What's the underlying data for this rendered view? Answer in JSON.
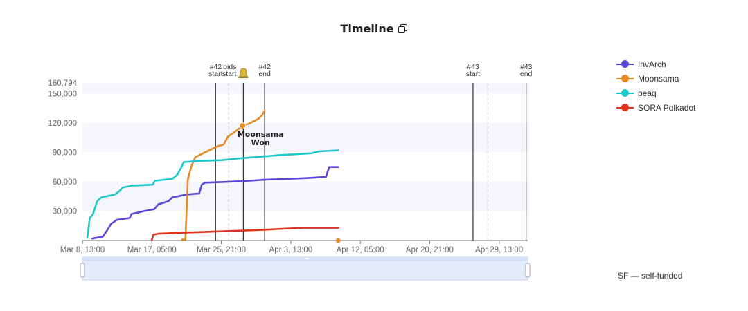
{
  "title": "Timeline",
  "footnote": "SF — self-funded",
  "colors": {
    "InvArch": "#5a47d8",
    "Moonsama": "#e88a22",
    "peaq": "#1ec8c8",
    "SORA Polkadot": "#e2321b"
  },
  "chart_data": {
    "type": "line",
    "y_ticks": [
      "160,794",
      "150,000",
      "120,000",
      "90,000",
      "60,000",
      "30,000"
    ],
    "x_ticks": [
      "Mar 8, 13:00",
      "Mar 17, 05:00",
      "Mar 25, 21:00",
      "Apr 3, 13:00",
      "Apr 12, 05:00",
      "Apr 20, 21:00",
      "Apr 29, 13:00"
    ],
    "ylim": [
      0,
      160794
    ],
    "xlim_days": [
      0,
      54.5
    ],
    "grid": "horizontal bands",
    "legend_position": "top-right",
    "markers": [
      {
        "line1": "#42",
        "line2": "start",
        "day": 16.3
      },
      {
        "line1": "bids",
        "line2": "start",
        "day": 19.7,
        "icon": "bell-icon"
      },
      {
        "line1": "#42",
        "line2": "end",
        "day": 22.3
      },
      {
        "line1": "#43",
        "line2": "start",
        "day": 47.8
      },
      {
        "line1": "#43",
        "line2": "end",
        "day": 54.3
      }
    ],
    "dashed_lines_days": [
      17.9,
      49.6
    ],
    "annotation": {
      "line1": "Moonsama",
      "line2": "Won",
      "day": 19.6,
      "value": 117000
    },
    "series": [
      {
        "name": "InvArch",
        "points": [
          [
            1.2,
            2000
          ],
          [
            2.5,
            4000
          ],
          [
            3,
            10000
          ],
          [
            3.5,
            17000
          ],
          [
            4.2,
            21000
          ],
          [
            5.8,
            23000
          ],
          [
            6,
            27000
          ],
          [
            7.5,
            30000
          ],
          [
            8.8,
            32000
          ],
          [
            9.3,
            37000
          ],
          [
            10.5,
            40000
          ],
          [
            11,
            44000
          ],
          [
            12.8,
            47000
          ],
          [
            14.3,
            48000
          ],
          [
            14.6,
            57000
          ],
          [
            15,
            59000
          ],
          [
            18,
            60000
          ],
          [
            20.5,
            61000
          ],
          [
            22.3,
            62000
          ],
          [
            25.5,
            63000
          ],
          [
            28,
            64000
          ],
          [
            29.8,
            65000
          ],
          [
            30.2,
            75000
          ],
          [
            31.3,
            75000
          ]
        ]
      },
      {
        "name": "Moonsama",
        "points": [
          [
            12.2,
            1000
          ],
          [
            12.6,
            1000
          ],
          [
            12.9,
            62000
          ],
          [
            13.3,
            75000
          ],
          [
            13.8,
            85000
          ],
          [
            15,
            90000
          ],
          [
            16.5,
            96000
          ],
          [
            17.3,
            98000
          ],
          [
            17.8,
            106000
          ],
          [
            18.5,
            110000
          ],
          [
            19.6,
            117000
          ],
          [
            20.3,
            119000
          ],
          [
            21.5,
            124000
          ],
          [
            22,
            128000
          ],
          [
            22.3,
            133000
          ]
        ]
      },
      {
        "name": "peaq",
        "points": [
          [
            0.6,
            3000
          ],
          [
            0.9,
            23000
          ],
          [
            1.3,
            27000
          ],
          [
            1.8,
            40000
          ],
          [
            2.3,
            44000
          ],
          [
            4,
            47000
          ],
          [
            4.6,
            51000
          ],
          [
            4.9,
            54000
          ],
          [
            6,
            56000
          ],
          [
            8.6,
            57000
          ],
          [
            8.9,
            61000
          ],
          [
            11,
            63000
          ],
          [
            11.6,
            67000
          ],
          [
            12,
            73000
          ],
          [
            12.4,
            80000
          ],
          [
            14,
            81000
          ],
          [
            17,
            82000
          ],
          [
            19.4,
            84000
          ],
          [
            21,
            85000
          ],
          [
            22.5,
            86000
          ],
          [
            24,
            87000
          ],
          [
            26,
            88000
          ],
          [
            28,
            89000
          ],
          [
            29,
            91000
          ],
          [
            31.3,
            92000
          ]
        ]
      },
      {
        "name": "SORA Polkadot",
        "points": [
          [
            8.5,
            1000
          ],
          [
            8.7,
            6000
          ],
          [
            9.3,
            7000
          ],
          [
            12.2,
            8000
          ],
          [
            15.8,
            9000
          ],
          [
            19.2,
            10000
          ],
          [
            22.2,
            11000
          ],
          [
            24.5,
            12000
          ],
          [
            27,
            13000
          ],
          [
            31.3,
            13000
          ]
        ]
      }
    ],
    "end_dots": [
      {
        "series": "SORA Polkadot",
        "day": 31.3,
        "value": 0
      },
      {
        "series": "Moonsama",
        "day": 31.3,
        "value": 0
      }
    ]
  }
}
